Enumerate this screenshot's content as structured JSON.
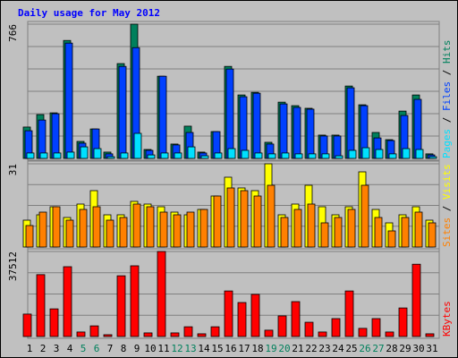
{
  "title": "Daily usage for May 2012",
  "categories": [
    "1",
    "2",
    "3",
    "4",
    "5",
    "6",
    "7",
    "8",
    "9",
    "10",
    "11",
    "12",
    "13",
    "14",
    "15",
    "16",
    "17",
    "18",
    "19",
    "20",
    "21",
    "22",
    "23",
    "24",
    "25",
    "26",
    "27",
    "28",
    "29",
    "30",
    "31"
  ],
  "category_colors": [
    "#000000",
    "#000000",
    "#000000",
    "#000000",
    "#00805c",
    "#00805c",
    "#000000",
    "#000000",
    "#000000",
    "#000000",
    "#000000",
    "#00805c",
    "#00805c",
    "#000000",
    "#000000",
    "#000000",
    "#000000",
    "#000000",
    "#00805c",
    "#00805c",
    "#000000",
    "#000000",
    "#000000",
    "#000000",
    "#000000",
    "#00805c",
    "#00805c",
    "#000000",
    "#000000",
    "#000000",
    "#000000"
  ],
  "chart_data": [
    {
      "type": "bar",
      "ylim": [
        0,
        766
      ],
      "yticks": [
        766
      ],
      "series": [
        {
          "name": "Hits",
          "color": "#00805c",
          "values": [
            179,
            250,
            260,
            673,
            97,
            168,
            36,
            541,
            766,
            51,
            469,
            82,
            184,
            36,
            153,
            525,
            362,
            377,
            92,
            321,
            301,
            286,
            133,
            133,
            413,
            306,
            148,
            107,
            270,
            362,
            26
          ]
        },
        {
          "name": "Files",
          "color": "#0040ff",
          "values": [
            158,
            219,
            255,
            658,
            87,
            168,
            26,
            525,
            632,
            46,
            469,
            77,
            148,
            31,
            153,
            510,
            352,
            372,
            82,
            311,
            291,
            281,
            128,
            128,
            403,
            301,
            117,
            102,
            245,
            337,
            20
          ]
        },
        {
          "name": "Pages",
          "color": "#00e0ff",
          "values": [
            31,
            31,
            31,
            36,
            66,
            56,
            10,
            31,
            143,
            20,
            31,
            31,
            66,
            15,
            31,
            56,
            46,
            31,
            26,
            31,
            26,
            26,
            26,
            15,
            46,
            61,
            51,
            26,
            56,
            51,
            10
          ]
        }
      ]
    },
    {
      "type": "bar",
      "ylim": [
        0,
        31
      ],
      "yticks": [
        31
      ],
      "series": [
        {
          "name": "Visits",
          "color": "#ffff00",
          "values": [
            10,
            12,
            15,
            11,
            16,
            21,
            12,
            12,
            17,
            16,
            15,
            13,
            12,
            14,
            19,
            26,
            22,
            21,
            31,
            12,
            16,
            23,
            15,
            12,
            15,
            28,
            14,
            9,
            12,
            15,
            10
          ]
        },
        {
          "name": "Sites",
          "color": "#ff8000",
          "values": [
            8,
            13,
            15,
            10,
            14,
            15,
            10,
            11,
            16,
            15,
            13,
            12,
            13,
            14,
            19,
            22,
            21,
            19,
            23,
            11,
            14,
            16,
            9,
            11,
            14,
            23,
            11,
            6,
            11,
            13,
            9
          ]
        }
      ]
    },
    {
      "type": "bar",
      "ylim": [
        0,
        37512
      ],
      "yticks": [
        37512
      ],
      "series": [
        {
          "name": "KBytes",
          "color": "#ff0000",
          "values": [
            9900,
            27300,
            12200,
            30800,
            2000,
            4700,
            800,
            26800,
            31200,
            1600,
            37512,
            1600,
            4300,
            1200,
            4300,
            20100,
            15000,
            18600,
            2800,
            9100,
            15400,
            6300,
            2000,
            7900,
            20100,
            3600,
            7900,
            2000,
            12600,
            31900,
            1200
          ]
        }
      ]
    }
  ]
}
